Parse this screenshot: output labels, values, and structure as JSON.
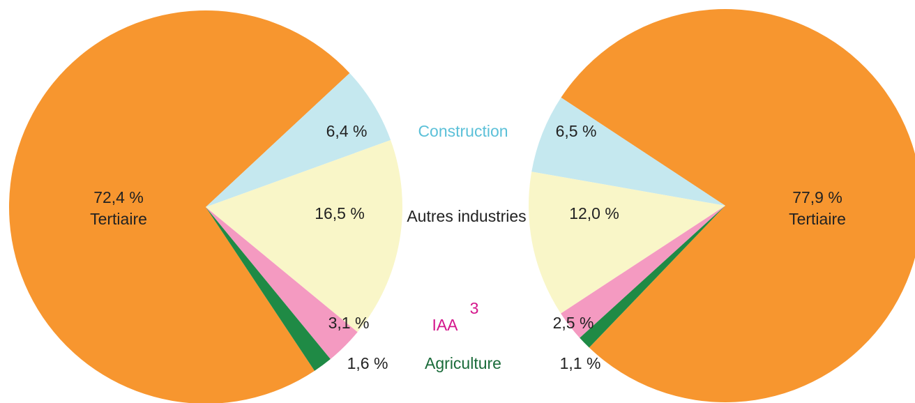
{
  "chart_data": [
    {
      "type": "pie",
      "categories": [
        "Tertiaire",
        "Construction",
        "Autres industries",
        "IAA",
        "Agriculture"
      ],
      "category_superscripts": [
        null,
        null,
        null,
        "3",
        null
      ],
      "values": [
        72.4,
        6.4,
        16.5,
        3.1,
        1.6
      ],
      "value_labels": [
        "72,4 %",
        "6,4 %",
        "16,5 %",
        "3,1 %",
        "1,6 %"
      ],
      "colors": [
        "#f7962f",
        "#c5e8ef",
        "#f9f6c8",
        "#f49ac1",
        "#1f8a45"
      ],
      "label_colors": [
        "#222222",
        "#5bc0d8",
        "#222222",
        "#d4168c",
        "#1a6b3a"
      ]
    },
    {
      "type": "pie",
      "categories": [
        "Tertiaire",
        "Construction",
        "Autres industries",
        "IAA",
        "Agriculture"
      ],
      "values": [
        77.9,
        6.5,
        12.0,
        2.5,
        1.1
      ],
      "value_labels": [
        "77,9 %",
        "6,5 %",
        "12,0 %",
        "2,5 %",
        "1,1 %"
      ],
      "colors": [
        "#f7962f",
        "#c5e8ef",
        "#f9f6c8",
        "#f49ac1",
        "#1f8a45"
      ]
    }
  ]
}
